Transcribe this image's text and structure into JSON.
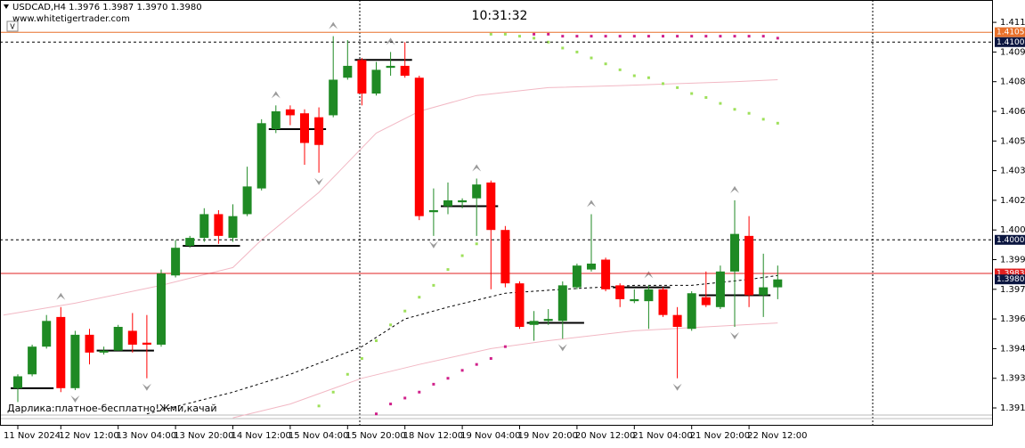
{
  "chart_data": {
    "type": "candlestick",
    "title": "USDCAD,H4  1.3976 1.3987 1.3970 1.3980",
    "subtitle": "www.whitetigertrader.com",
    "clock": "10:31:32",
    "annotation": "Дарлика:платное-бесплатно!Жми,качай",
    "categories": [
      "11 Nov 2024",
      null,
      null,
      "12 Nov 12:00",
      null,
      null,
      null,
      "13 Nov 04:00",
      null,
      null,
      null,
      "13 Nov 20:00",
      null,
      null,
      null,
      "14 Nov 12:00",
      null,
      null,
      null,
      "15 Nov 04:00",
      null,
      null,
      null,
      "15 Nov 20:00",
      null,
      null,
      null,
      "18 Nov 12:00",
      null,
      null,
      null,
      "19 Nov 04:00",
      null,
      null,
      null,
      "19 Nov 20:00",
      null,
      null,
      null,
      "20 Nov 12:00",
      null,
      null,
      null,
      "21 Nov 04:00",
      null,
      null,
      null,
      "21 Nov 20:00",
      null,
      null,
      null,
      "22 Nov 12:00",
      null,
      null
    ],
    "open": [
      1.3925,
      1.3932,
      1.3946,
      1.3961,
      1.3925,
      1.3952,
      1.3943,
      1.3944,
      1.3954,
      1.3948,
      1.3947,
      1.3982,
      1.3997,
      1.4001,
      1.4013,
      1.4001,
      1.4013,
      1.4026,
      1.4056,
      1.4066,
      1.4064,
      1.4062,
      1.4063,
      1.4082,
      1.4091,
      1.4074,
      1.4087,
      1.4088,
      1.4082,
      1.4014,
      1.4017,
      1.4019,
      1.4021,
      1.4029,
      1.4005,
      1.3978,
      1.3957,
      1.3959,
      1.3959,
      1.3976,
      1.3985,
      1.399,
      1.3977,
      1.3969,
      1.3969,
      1.3975,
      1.3962,
      1.3955,
      1.3971,
      1.3966,
      1.3984,
      1.4002,
      1.3972,
      1.3976
    ],
    "high": [
      1.3932,
      1.3947,
      1.3962,
      1.3966,
      1.3954,
      1.3955,
      1.3946,
      1.3957,
      1.3963,
      1.3962,
      1.3985,
      1.4,
      1.4002,
      1.4016,
      1.4015,
      1.4018,
      1.4037,
      1.4061,
      1.4068,
      1.4068,
      1.4066,
      1.4067,
      1.4103,
      1.4101,
      1.4092,
      1.409,
      1.4095,
      1.41,
      1.4083,
      1.4026,
      1.4029,
      1.4021,
      1.4031,
      1.403,
      1.4007,
      1.3979,
      1.3964,
      1.3965,
      1.3979,
      1.3988,
      1.4013,
      1.3991,
      1.3978,
      1.3975,
      1.3977,
      1.3976,
      1.3966,
      1.3974,
      1.3984,
      1.3987,
      1.402,
      1.4012,
      1.3993,
      1.3987
    ],
    "low": [
      1.3918,
      1.3931,
      1.3945,
      1.3923,
      1.3924,
      1.3937,
      1.3942,
      1.3944,
      1.3943,
      1.393,
      1.3946,
      1.3981,
      1.3996,
      1.3999,
      1.3998,
      1.3999,
      1.4012,
      1.4025,
      1.4054,
      1.4058,
      1.4038,
      1.4034,
      1.4062,
      1.4081,
      1.4068,
      1.4073,
      1.4083,
      1.4082,
      1.401,
      1.4002,
      1.4013,
      1.4016,
      1.4002,
      1.3975,
      1.3976,
      1.3955,
      1.3949,
      1.3957,
      1.395,
      1.3975,
      1.3984,
      1.3974,
      1.3966,
      1.3968,
      1.3955,
      1.3961,
      1.393,
      1.3954,
      1.3966,
      1.3965,
      1.3956,
      1.3966,
      1.3961,
      1.397
    ],
    "close": [
      1.3931,
      1.3946,
      1.3959,
      1.3925,
      1.3952,
      1.3943,
      1.3944,
      1.3956,
      1.3947,
      1.3947,
      1.3983,
      1.3996,
      1.4001,
      1.4013,
      1.4002,
      1.4012,
      1.4027,
      1.4059,
      1.4065,
      1.4063,
      1.4049,
      1.4048,
      1.4081,
      1.4088,
      1.4074,
      1.4086,
      1.4088,
      1.4083,
      1.4012,
      1.4015,
      1.402,
      1.402,
      1.4028,
      1.4005,
      1.3978,
      1.3956,
      1.3959,
      1.396,
      1.3977,
      1.3987,
      1.3988,
      1.3975,
      1.397,
      1.397,
      1.3975,
      1.3962,
      1.3956,
      1.3973,
      1.3967,
      1.3984,
      1.4003,
      1.3972,
      1.3976,
      1.398
    ],
    "up_color": "#1f8a24",
    "down_color": "#ff0000",
    "ylim": [
      1.3906,
      1.41213
    ],
    "yticks": [
      {
        "value": 1.411,
        "label": "1.4110"
      },
      1.4095,
      {
        "value": 1.408,
        "label": "1.4080"
      },
      1.4065,
      {
        "value": 1.405,
        "label": "1.4050"
      },
      1.4035,
      {
        "value": 1.402,
        "label": "1.4020"
      },
      1.4005,
      {
        "value": 1.399,
        "label": "1.3990"
      },
      1.3975,
      {
        "value": 1.396,
        "label": "1.3960"
      },
      1.3945,
      {
        "value": 1.393,
        "label": "1.3930"
      },
      1.3915
    ],
    "grid": false,
    "price_lines": [
      {
        "value": 1.4105,
        "label": "1.4105",
        "color": "#e8702a",
        "style": "solid"
      },
      {
        "value": 1.41,
        "label": "1.4100",
        "color": "#000000",
        "style": "dashed"
      },
      {
        "value": 1.4,
        "label": "1.4000",
        "color": "#000000",
        "style": "dashed"
      },
      {
        "value": 1.3983,
        "label": "1.3983",
        "color": "#e02020",
        "style": "solid"
      },
      {
        "value": 1.398,
        "label": "1.3980",
        "color": "#000000",
        "style": "none"
      }
    ],
    "indicators": [
      {
        "kind": "line",
        "color": "#f2b8c4",
        "x": [
          -1,
          4,
          10,
          15,
          17,
          21,
          25,
          28,
          32,
          37,
          42,
          46,
          50,
          53
        ],
        "values": [
          1.3962,
          1.3968,
          1.3977,
          1.3986,
          1.4,
          1.4024,
          1.4054,
          1.4065,
          1.4073,
          1.4077,
          1.4078,
          1.4079,
          1.408,
          1.4081
        ]
      },
      {
        "kind": "line",
        "color": "#f2b8c4",
        "x": [
          15,
          19,
          24,
          28,
          33,
          37,
          43,
          48,
          53
        ],
        "values": [
          1.391,
          1.3917,
          1.393,
          1.3937,
          1.3945,
          1.3949,
          1.3954,
          1.3956,
          1.3958
        ]
      },
      {
        "kind": "dashed",
        "color": "#000000",
        "x": [
          9,
          15,
          19,
          24,
          27,
          30,
          34,
          38,
          43,
          47,
          51,
          53
        ],
        "values": [
          1.3912,
          1.3923,
          1.3932,
          1.3946,
          1.396,
          1.3966,
          1.3973,
          1.3975,
          1.3977,
          1.3977,
          1.398,
          1.3982
        ]
      },
      {
        "kind": "dots",
        "color": "#9ee05a",
        "x": [
          21,
          22,
          23,
          24,
          25,
          26,
          27,
          28,
          29,
          30,
          31,
          32
        ],
        "values": [
          1.3916,
          1.3923,
          1.3932,
          1.394,
          1.3949,
          1.3957,
          1.3964,
          1.3971,
          1.3977,
          1.3985,
          1.3992,
          1.3998
        ]
      },
      {
        "kind": "dots",
        "color": "#9ee05a",
        "x": [
          33,
          34,
          35,
          36,
          37,
          38,
          39,
          40,
          41,
          42,
          43,
          44,
          45,
          46,
          47,
          48,
          49,
          50,
          51,
          52,
          53
        ],
        "values": [
          1.4104,
          1.4104,
          1.4103,
          1.4102,
          1.41,
          1.4097,
          1.4095,
          1.4092,
          1.4089,
          1.4086,
          1.4083,
          1.4082,
          1.4079,
          1.4077,
          1.4074,
          1.4072,
          1.4069,
          1.4066,
          1.4064,
          1.4061,
          1.4059
        ]
      },
      {
        "kind": "dots",
        "color": "#d0208a",
        "x": [
          25,
          26,
          27,
          28,
          29,
          30,
          31,
          32,
          33,
          34
        ],
        "values": [
          1.3912,
          1.3917,
          1.392,
          1.3923,
          1.3927,
          1.393,
          1.3934,
          1.3937,
          1.394,
          1.3946
        ]
      },
      {
        "kind": "dots",
        "color": "#d0208a",
        "x": [
          36,
          37,
          38,
          39,
          40,
          41,
          42,
          43,
          44,
          45,
          46,
          47,
          48,
          49,
          50,
          51,
          52,
          53
        ],
        "values": [
          1.4104,
          1.4104,
          1.4103,
          1.4103,
          1.4103,
          1.4103,
          1.4103,
          1.4103,
          1.4103,
          1.4103,
          1.4103,
          1.4103,
          1.4103,
          1.4103,
          1.4103,
          1.4103,
          1.4103,
          1.4102
        ]
      },
      {
        "kind": "arrow-up",
        "color": "#9a9a9a",
        "x": [
          3,
          18,
          22,
          26,
          32,
          40,
          44,
          50
        ],
        "values": [
          1.3966,
          1.4068,
          1.4103,
          1.4095,
          1.4031,
          1.4013,
          1.3977,
          1.402
        ]
      },
      {
        "kind": "arrow-down",
        "color": "#9a9a9a",
        "x": [
          4,
          9,
          21,
          29,
          38,
          46,
          50
        ],
        "values": [
          1.3924,
          1.393,
          1.4034,
          1.4002,
          1.395,
          1.393,
          1.3956
        ]
      }
    ],
    "levels": [
      {
        "from": 0,
        "to": 2,
        "value": 1.3925
      },
      {
        "from": 6,
        "to": 9,
        "value": 1.3944
      },
      {
        "from": 12,
        "to": 15,
        "value": 1.3997
      },
      {
        "from": 18,
        "to": 21,
        "value": 1.4056
      },
      {
        "from": 24,
        "to": 27,
        "value": 1.4091
      },
      {
        "from": 30,
        "to": 33,
        "value": 1.4017
      },
      {
        "from": 36,
        "to": 39,
        "value": 1.3958
      },
      {
        "from": 42,
        "to": 45,
        "value": 1.3976
      },
      {
        "from": 48,
        "to": 52,
        "value": 1.3972
      }
    ]
  }
}
